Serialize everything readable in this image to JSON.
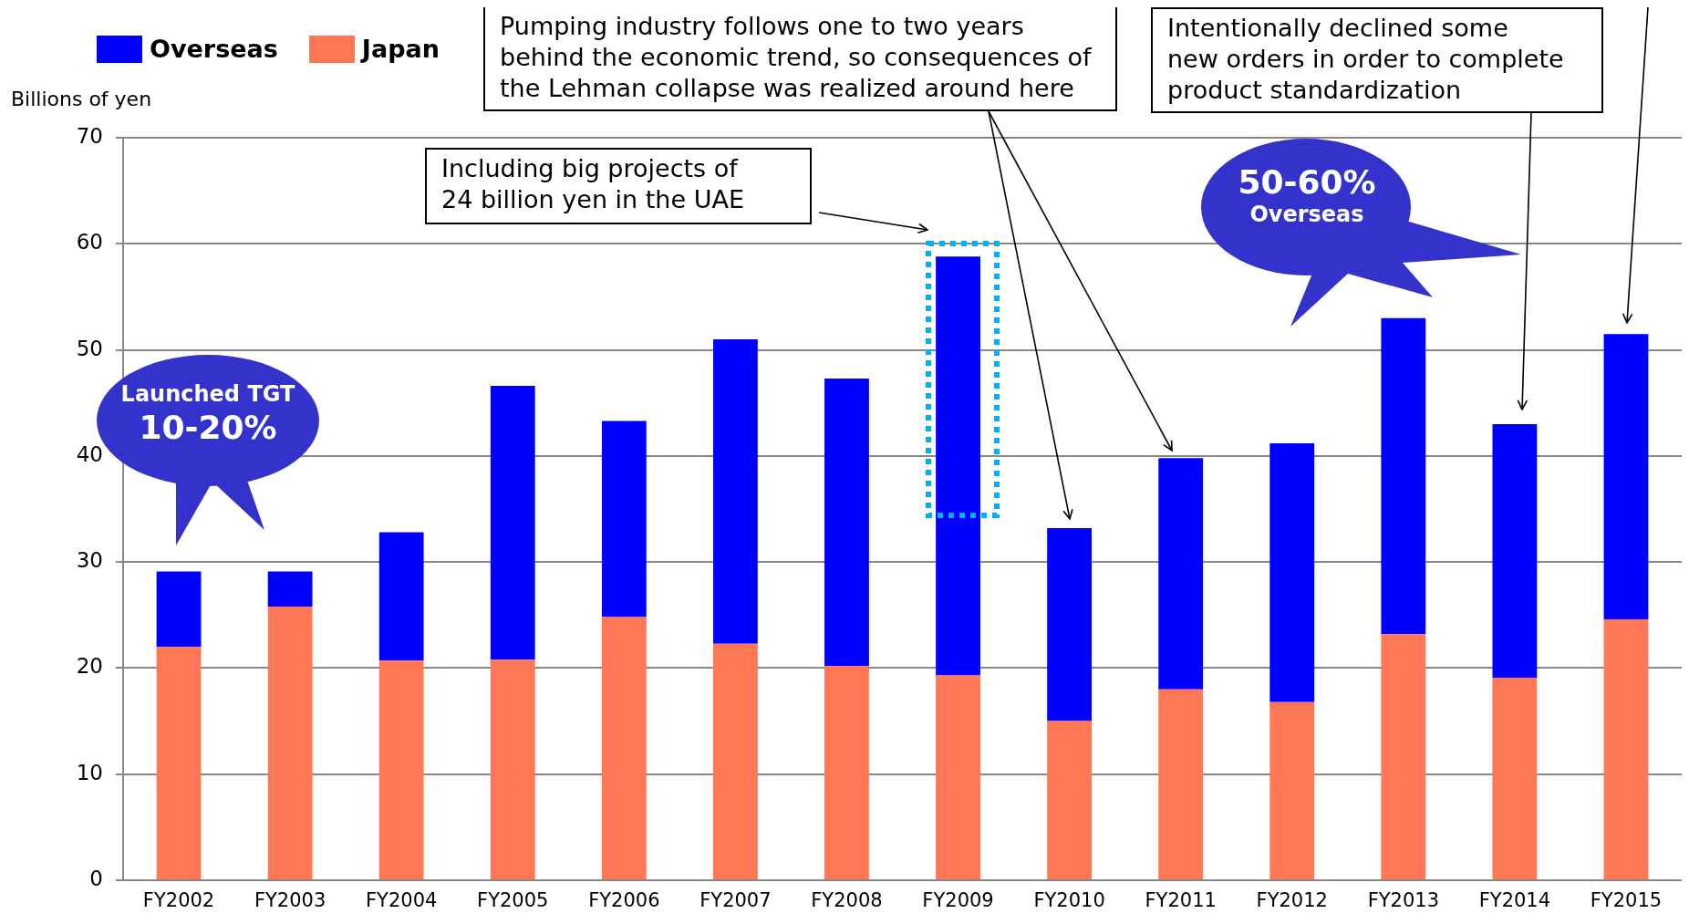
{
  "chart_data": {
    "type": "bar",
    "ylabel": "Billions of yen",
    "categories": [
      "FY2002",
      "FY2003",
      "FY2004",
      "FY2005",
      "FY2006",
      "FY2007",
      "FY2008",
      "FY2009",
      "FY2010",
      "FY2011",
      "FY2012",
      "FY2013",
      "FY2014",
      "FY2015"
    ],
    "series": [
      {
        "name": "Japan",
        "color": "#ff7755",
        "values": [
          22.0,
          25.8,
          20.7,
          20.8,
          24.8,
          22.3,
          20.2,
          19.3,
          15.0,
          18.0,
          16.8,
          23.2,
          19.1,
          24.6
        ]
      },
      {
        "name": "Overseas",
        "color": "#0000ff",
        "values": [
          7.1,
          3.3,
          12.1,
          25.8,
          18.5,
          28.7,
          27.1,
          39.5,
          18.2,
          21.8,
          24.4,
          29.8,
          23.9,
          26.9
        ]
      }
    ],
    "stacked": true,
    "ylim": [
      0,
      70
    ],
    "yticks": [
      0,
      10,
      20,
      30,
      40,
      50,
      60,
      70
    ],
    "grid": "y",
    "legend": "top left",
    "annotations": [
      "Pumping industry follows one to two years\nbehind the economic trend, so consequences of\nthe Lehman collapse was realized around here",
      "Including big projects of\n24 billion yen in the UAE",
      "Intentionally declined some\nnew orders in order to complete\nproduct standardization",
      "Launched TGT\n10-20%",
      "50-60%\nOverseas"
    ]
  }
}
